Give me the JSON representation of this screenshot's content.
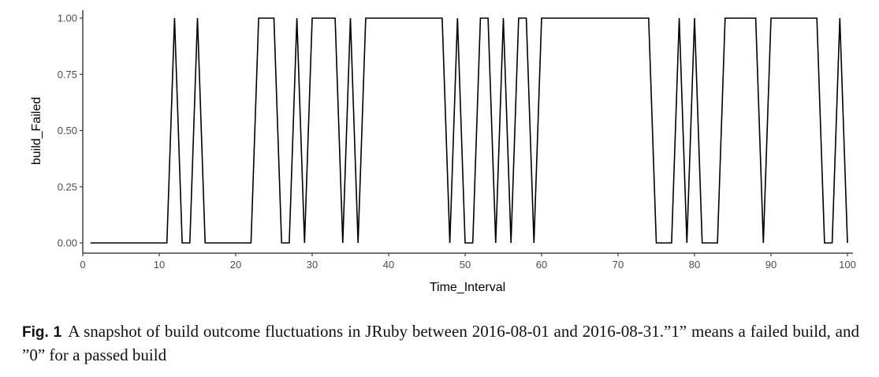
{
  "figure": {
    "label": "Fig. 1",
    "caption": "A snapshot of build outcome fluctuations in JRuby between 2016-08-01 and 2016-08-31.”1” means a failed build, and ”0” for a passed build"
  },
  "chart_data": {
    "type": "line",
    "title": "",
    "xlabel": "Time_Interval",
    "ylabel": "build_Failed",
    "xlim": [
      0,
      100
    ],
    "ylim": [
      0,
      1
    ],
    "x_ticks": [
      0,
      10,
      20,
      30,
      40,
      50,
      60,
      70,
      80,
      90,
      100
    ],
    "x_tick_labels": [
      "0",
      "10",
      "20",
      "30",
      "40",
      "50",
      "60",
      "70",
      "80",
      "90",
      "100"
    ],
    "y_ticks": [
      0,
      0.25,
      0.5,
      0.75,
      1.0
    ],
    "y_tick_labels": [
      "0.00",
      "0.25",
      "0.50",
      "0.75",
      "1.00"
    ],
    "grid": false,
    "legend": null,
    "line_color": "#000000",
    "x": [
      1,
      2,
      3,
      4,
      5,
      6,
      7,
      8,
      9,
      10,
      11,
      12,
      13,
      14,
      15,
      16,
      17,
      18,
      19,
      20,
      21,
      22,
      23,
      24,
      25,
      26,
      27,
      28,
      29,
      30,
      31,
      32,
      33,
      34,
      35,
      36,
      37,
      38,
      39,
      40,
      41,
      42,
      43,
      44,
      45,
      46,
      47,
      48,
      49,
      50,
      51,
      52,
      53,
      54,
      55,
      56,
      57,
      58,
      59,
      60,
      61,
      62,
      63,
      64,
      65,
      66,
      67,
      68,
      69,
      70,
      71,
      72,
      73,
      74,
      75,
      76,
      77,
      78,
      79,
      80,
      81,
      82,
      83,
      84,
      85,
      86,
      87,
      88,
      89,
      90,
      91,
      92,
      93,
      94,
      95,
      96,
      97,
      98,
      99,
      100
    ],
    "series": [
      {
        "name": "build_Failed",
        "values": [
          0,
          0,
          0,
          0,
          0,
          0,
          0,
          0,
          0,
          0,
          0,
          1,
          0,
          0,
          1,
          0,
          0,
          0,
          0,
          0,
          0,
          0,
          1,
          1,
          1,
          0,
          0,
          1,
          0,
          1,
          1,
          1,
          1,
          0,
          1,
          0,
          1,
          1,
          1,
          1,
          1,
          1,
          1,
          1,
          1,
          1,
          1,
          0,
          1,
          0,
          0,
          1,
          1,
          0,
          1,
          0,
          1,
          1,
          0,
          1,
          1,
          1,
          1,
          1,
          1,
          1,
          1,
          1,
          1,
          1,
          1,
          1,
          1,
          1,
          0,
          0,
          0,
          1,
          0,
          1,
          0,
          0,
          0,
          1,
          1,
          1,
          1,
          1,
          0,
          1,
          1,
          1,
          1,
          1,
          1,
          1,
          0,
          0,
          1,
          0
        ]
      }
    ]
  }
}
